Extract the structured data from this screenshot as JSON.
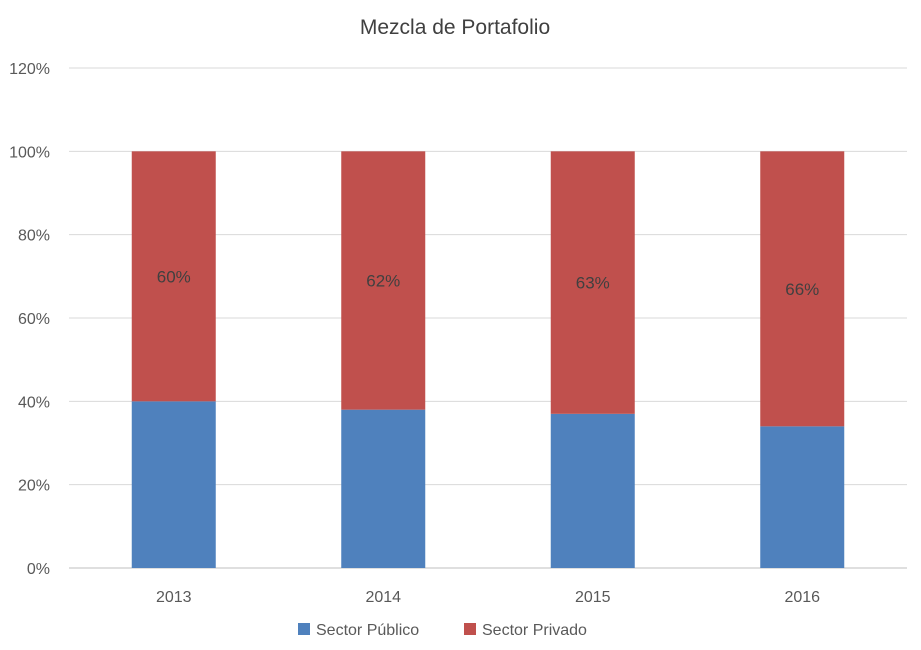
{
  "chart_data": {
    "type": "bar",
    "stacked": true,
    "title": "Mezcla de Portafolio",
    "xlabel": "",
    "ylabel": "",
    "categories": [
      "2013",
      "2014",
      "2015",
      "2016"
    ],
    "series": [
      {
        "name": "Sector Público",
        "values": [
          40,
          38,
          37,
          34
        ],
        "color": "#4f81bd",
        "data_labels": [
          "",
          "",
          "",
          ""
        ]
      },
      {
        "name": "Sector Privado",
        "values": [
          60,
          62,
          63,
          66
        ],
        "color": "#c0504d",
        "data_labels": [
          "60%",
          "62%",
          "63%",
          "66%"
        ]
      }
    ],
    "ylim": [
      0,
      120
    ],
    "yticks": [
      0,
      20,
      40,
      60,
      80,
      100,
      120
    ],
    "ytick_labels": [
      "0%",
      "20%",
      "40%",
      "60%",
      "80%",
      "100%",
      "120%"
    ],
    "grid": true,
    "legend": "bottom"
  }
}
